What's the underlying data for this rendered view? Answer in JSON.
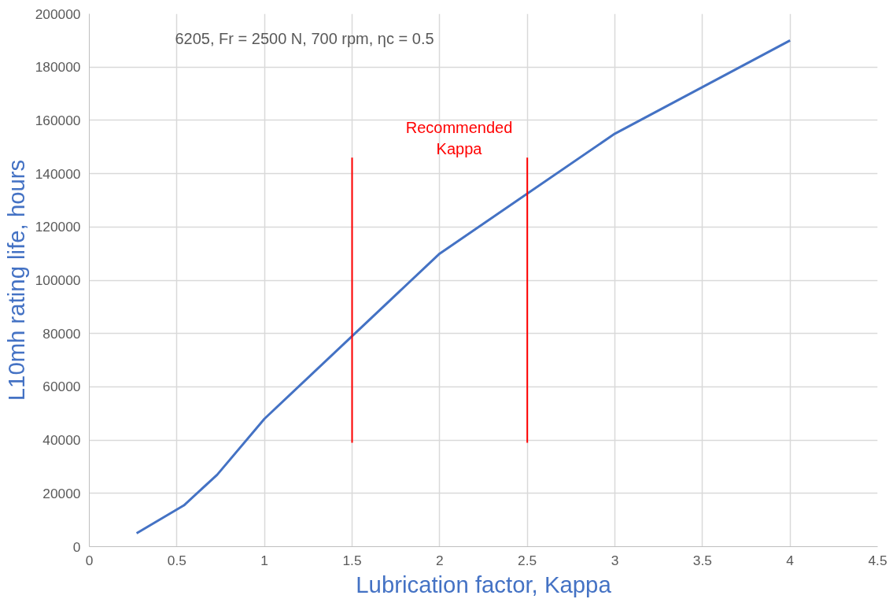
{
  "chart_data": {
    "type": "line",
    "xlabel": "Lubrication factor, Kappa",
    "ylabel": "L10mh rating life, hours",
    "annotations": [
      "6205, Fr = 2500 N, 700 rpm, ηc = 0.5",
      "Recommended\nKappa"
    ],
    "series": [
      {
        "color": "#4472c4",
        "x": [
          0.27,
          0.54,
          0.73,
          1.0,
          2.0,
          3.0,
          4.0
        ],
        "values": [
          5000,
          15500,
          27000,
          48000,
          110000,
          155000,
          190000
        ]
      },
      {
        "type": "line",
        "color": "#ff0000",
        "x": [
          1.5,
          1.5
        ],
        "values": [
          39000,
          146000
        ]
      },
      {
        "type": "line",
        "color": "#ff0000",
        "x": [
          2.5,
          2.5
        ],
        "values": [
          39000,
          146000
        ]
      }
    ],
    "xlim": [
      0,
      4.5
    ],
    "xticks": [
      0,
      0.5,
      1,
      1.5,
      2,
      2.5,
      3,
      3.5,
      4,
      4.5
    ],
    "ylim": [
      0,
      200000
    ],
    "yticks": [
      0,
      20000,
      40000,
      60000,
      80000,
      100000,
      120000,
      140000,
      160000,
      180000,
      200000
    ],
    "grid": true
  }
}
